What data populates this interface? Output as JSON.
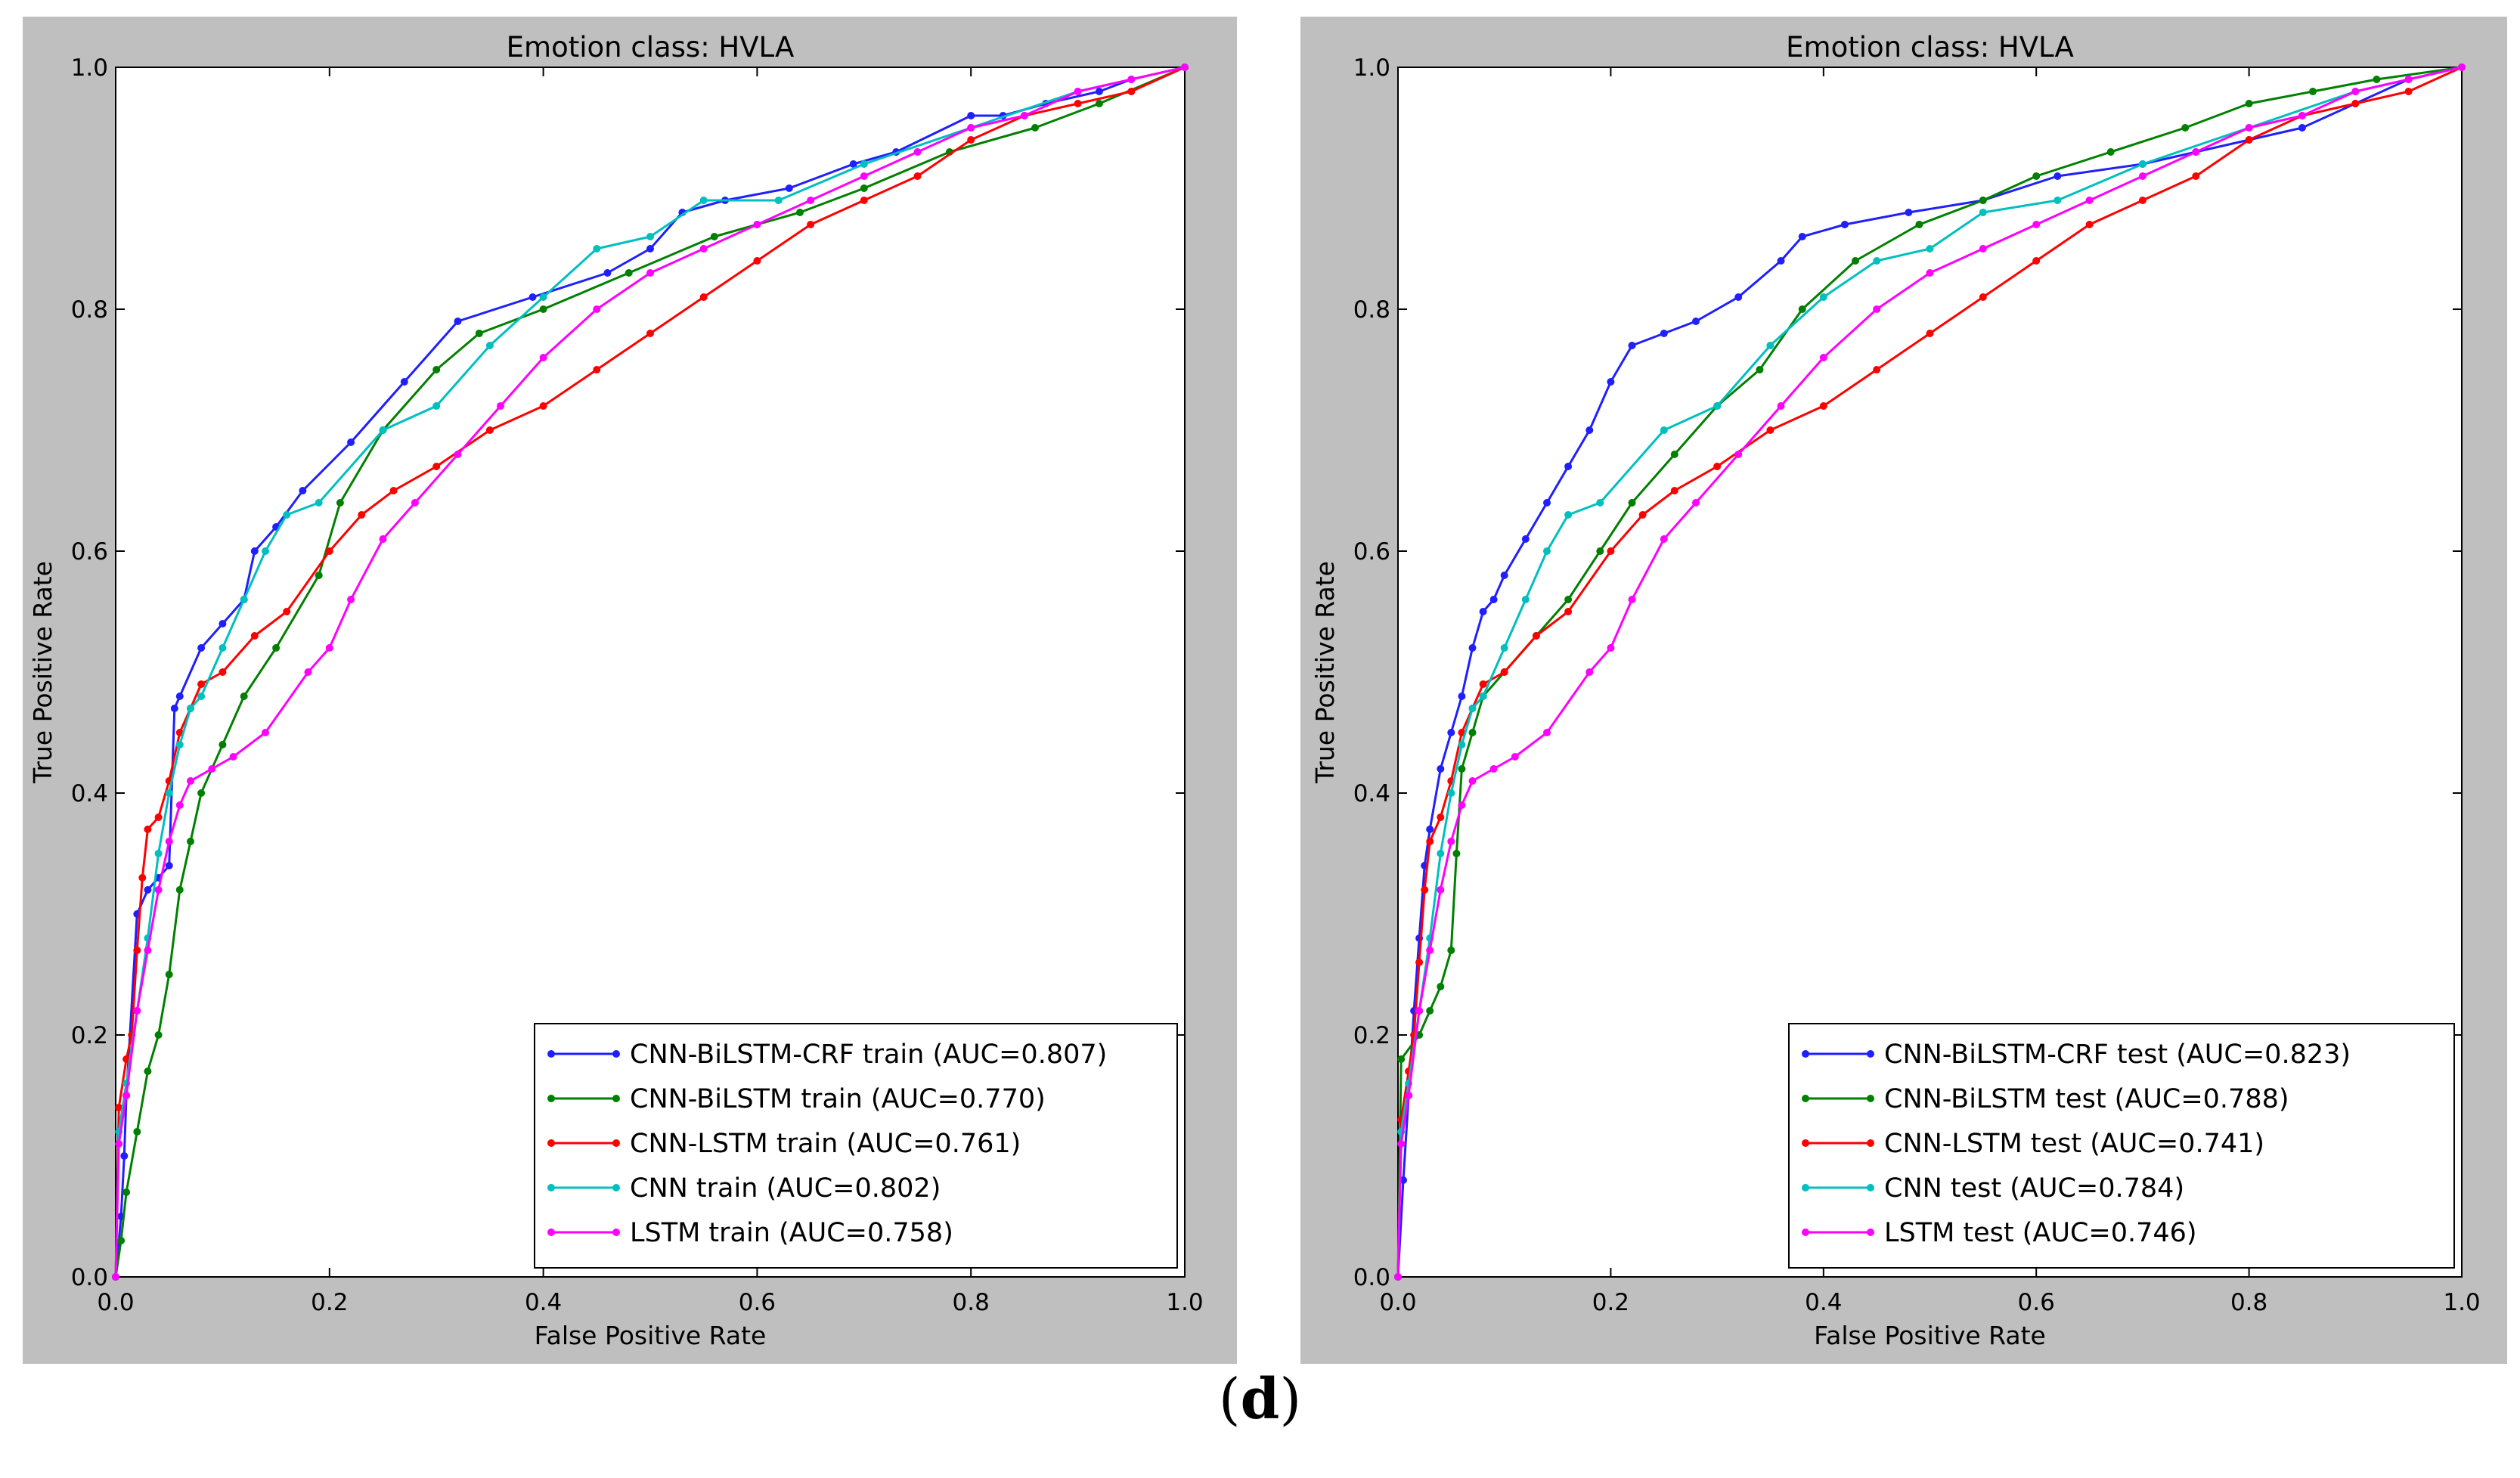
{
  "figure": {
    "caption_open": "(",
    "caption_letter": "d",
    "caption_close": ")"
  },
  "colors": {
    "CNN-BiLSTM-CRF": "#1f1fff",
    "CNN-BiLSTM": "#008000",
    "CNN-LSTM": "#ff0000",
    "CNN": "#00bfbf",
    "LSTM": "#ff00ff",
    "panel_bg": "#bfbfbf",
    "plot_bg": "#ffffff"
  },
  "chart_data": [
    {
      "type": "line",
      "title": "Emotion class: HVLA",
      "xlabel": "False Positive Rate",
      "ylabel": "True Positive Rate",
      "xlim": [
        0,
        1
      ],
      "ylim": [
        0,
        1
      ],
      "xticks": [
        "0.0",
        "0.2",
        "0.4",
        "0.6",
        "0.8",
        "1.0"
      ],
      "yticks": [
        "0.0",
        "0.2",
        "0.4",
        "0.6",
        "0.8",
        "1.0"
      ],
      "legend_position": "lower-right",
      "series": [
        {
          "name": "CNN-BiLSTM-CRF train (AUC=0.807)",
          "key": "CNN-BiLSTM-CRF",
          "x": [
            0,
            0.005,
            0.008,
            0.01,
            0.02,
            0.03,
            0.04,
            0.05,
            0.055,
            0.06,
            0.08,
            0.1,
            0.12,
            0.13,
            0.15,
            0.175,
            0.22,
            0.27,
            0.32,
            0.39,
            0.46,
            0.5,
            0.53,
            0.57,
            0.63,
            0.69,
            0.73,
            0.8,
            0.83,
            0.87,
            0.92,
            0.95,
            1.0
          ],
          "y": [
            0,
            0.05,
            0.1,
            0.15,
            0.3,
            0.32,
            0.33,
            0.34,
            0.47,
            0.48,
            0.52,
            0.54,
            0.56,
            0.6,
            0.62,
            0.65,
            0.69,
            0.74,
            0.79,
            0.81,
            0.83,
            0.85,
            0.88,
            0.89,
            0.9,
            0.92,
            0.93,
            0.96,
            0.96,
            0.97,
            0.98,
            0.99,
            1.0
          ]
        },
        {
          "name": "CNN-BiLSTM train (AUC=0.770)",
          "key": "CNN-BiLSTM",
          "x": [
            0,
            0.005,
            0.01,
            0.02,
            0.03,
            0.04,
            0.05,
            0.06,
            0.07,
            0.08,
            0.1,
            0.12,
            0.15,
            0.19,
            0.21,
            0.25,
            0.3,
            0.34,
            0.4,
            0.48,
            0.56,
            0.64,
            0.7,
            0.78,
            0.86,
            0.92,
            1.0
          ],
          "y": [
            0,
            0.03,
            0.07,
            0.12,
            0.17,
            0.2,
            0.25,
            0.32,
            0.36,
            0.4,
            0.44,
            0.48,
            0.52,
            0.58,
            0.64,
            0.7,
            0.75,
            0.78,
            0.8,
            0.83,
            0.86,
            0.88,
            0.9,
            0.93,
            0.95,
            0.97,
            1.0
          ]
        },
        {
          "name": "CNN-LSTM train (AUC=0.761)",
          "key": "CNN-LSTM",
          "x": [
            0,
            0.003,
            0.01,
            0.015,
            0.02,
            0.025,
            0.03,
            0.04,
            0.05,
            0.06,
            0.07,
            0.08,
            0.1,
            0.13,
            0.16,
            0.2,
            0.23,
            0.26,
            0.3,
            0.35,
            0.4,
            0.45,
            0.5,
            0.55,
            0.6,
            0.65,
            0.7,
            0.75,
            0.8,
            0.85,
            0.9,
            0.95,
            1.0
          ],
          "y": [
            0,
            0.14,
            0.18,
            0.2,
            0.27,
            0.33,
            0.37,
            0.38,
            0.41,
            0.45,
            0.47,
            0.49,
            0.5,
            0.53,
            0.55,
            0.6,
            0.63,
            0.65,
            0.67,
            0.7,
            0.72,
            0.75,
            0.78,
            0.81,
            0.84,
            0.87,
            0.89,
            0.91,
            0.94,
            0.96,
            0.97,
            0.98,
            1.0
          ]
        },
        {
          "name": "CNN train (AUC=0.802)",
          "key": "CNN",
          "x": [
            0,
            0.003,
            0.01,
            0.02,
            0.03,
            0.04,
            0.05,
            0.06,
            0.07,
            0.08,
            0.1,
            0.12,
            0.14,
            0.16,
            0.19,
            0.25,
            0.3,
            0.35,
            0.4,
            0.45,
            0.5,
            0.55,
            0.62,
            0.7,
            0.8,
            0.9,
            1.0
          ],
          "y": [
            0,
            0.12,
            0.16,
            0.22,
            0.28,
            0.35,
            0.4,
            0.44,
            0.47,
            0.48,
            0.52,
            0.56,
            0.6,
            0.63,
            0.64,
            0.7,
            0.72,
            0.77,
            0.81,
            0.85,
            0.86,
            0.89,
            0.89,
            0.92,
            0.95,
            0.98,
            1.0
          ]
        },
        {
          "name": "LSTM train (AUC=0.758)",
          "key": "LSTM",
          "x": [
            0,
            0.003,
            0.01,
            0.02,
            0.03,
            0.04,
            0.05,
            0.06,
            0.07,
            0.09,
            0.11,
            0.14,
            0.18,
            0.2,
            0.22,
            0.25,
            0.28,
            0.32,
            0.36,
            0.4,
            0.45,
            0.5,
            0.55,
            0.6,
            0.65,
            0.7,
            0.75,
            0.8,
            0.85,
            0.9,
            0.95,
            1.0
          ],
          "y": [
            0,
            0.11,
            0.15,
            0.22,
            0.27,
            0.32,
            0.36,
            0.39,
            0.41,
            0.42,
            0.43,
            0.45,
            0.5,
            0.52,
            0.56,
            0.61,
            0.64,
            0.68,
            0.72,
            0.76,
            0.8,
            0.83,
            0.85,
            0.87,
            0.89,
            0.91,
            0.93,
            0.95,
            0.96,
            0.98,
            0.99,
            1.0
          ]
        }
      ]
    },
    {
      "type": "line",
      "title": "Emotion class: HVLA",
      "xlabel": "False Positive Rate",
      "ylabel": "True Positive Rate",
      "xlim": [
        0,
        1
      ],
      "ylim": [
        0,
        1
      ],
      "xticks": [
        "0.0",
        "0.2",
        "0.4",
        "0.6",
        "0.8",
        "1.0"
      ],
      "yticks": [
        "0.0",
        "0.2",
        "0.4",
        "0.6",
        "0.8",
        "1.0"
      ],
      "legend_position": "lower-right",
      "series": [
        {
          "name": "CNN-BiLSTM-CRF test (AUC=0.823)",
          "key": "CNN-BiLSTM-CRF",
          "x": [
            0,
            0.005,
            0.01,
            0.015,
            0.02,
            0.025,
            0.03,
            0.04,
            0.05,
            0.06,
            0.07,
            0.08,
            0.09,
            0.1,
            0.12,
            0.14,
            0.16,
            0.18,
            0.2,
            0.22,
            0.25,
            0.28,
            0.32,
            0.36,
            0.38,
            0.42,
            0.48,
            0.55,
            0.62,
            0.7,
            0.75,
            0.8,
            0.85,
            0.9,
            0.95,
            1.0
          ],
          "y": [
            0,
            0.08,
            0.15,
            0.22,
            0.28,
            0.34,
            0.37,
            0.42,
            0.45,
            0.48,
            0.52,
            0.55,
            0.56,
            0.58,
            0.61,
            0.64,
            0.67,
            0.7,
            0.74,
            0.77,
            0.78,
            0.79,
            0.81,
            0.84,
            0.86,
            0.87,
            0.88,
            0.89,
            0.91,
            0.92,
            0.93,
            0.94,
            0.95,
            0.97,
            0.99,
            1.0
          ]
        },
        {
          "name": "CNN-BiLSTM test (AUC=0.788)",
          "key": "CNN-BiLSTM",
          "x": [
            0,
            0.003,
            0.02,
            0.03,
            0.04,
            0.05,
            0.055,
            0.06,
            0.07,
            0.08,
            0.1,
            0.13,
            0.16,
            0.19,
            0.22,
            0.26,
            0.3,
            0.34,
            0.38,
            0.43,
            0.49,
            0.55,
            0.6,
            0.67,
            0.74,
            0.8,
            0.86,
            0.92,
            1.0
          ],
          "y": [
            0,
            0.18,
            0.2,
            0.22,
            0.24,
            0.27,
            0.35,
            0.42,
            0.45,
            0.48,
            0.5,
            0.53,
            0.56,
            0.6,
            0.64,
            0.68,
            0.72,
            0.75,
            0.8,
            0.84,
            0.87,
            0.89,
            0.91,
            0.93,
            0.95,
            0.97,
            0.98,
            0.99,
            1.0
          ]
        },
        {
          "name": "CNN-LSTM test (AUC=0.741)",
          "key": "CNN-LSTM",
          "x": [
            0,
            0.003,
            0.01,
            0.015,
            0.02,
            0.025,
            0.03,
            0.04,
            0.05,
            0.06,
            0.07,
            0.08,
            0.1,
            0.13,
            0.16,
            0.2,
            0.23,
            0.26,
            0.3,
            0.35,
            0.4,
            0.45,
            0.5,
            0.55,
            0.6,
            0.65,
            0.7,
            0.75,
            0.8,
            0.85,
            0.9,
            0.95,
            1.0
          ],
          "y": [
            0,
            0.13,
            0.17,
            0.2,
            0.26,
            0.32,
            0.36,
            0.38,
            0.41,
            0.45,
            0.47,
            0.49,
            0.5,
            0.53,
            0.55,
            0.6,
            0.63,
            0.65,
            0.67,
            0.7,
            0.72,
            0.75,
            0.78,
            0.81,
            0.84,
            0.87,
            0.89,
            0.91,
            0.94,
            0.96,
            0.97,
            0.98,
            1.0
          ]
        },
        {
          "name": "CNN test (AUC=0.784)",
          "key": "CNN",
          "x": [
            0,
            0.003,
            0.01,
            0.02,
            0.03,
            0.04,
            0.05,
            0.06,
            0.07,
            0.08,
            0.1,
            0.12,
            0.14,
            0.16,
            0.19,
            0.25,
            0.3,
            0.35,
            0.4,
            0.45,
            0.5,
            0.55,
            0.62,
            0.7,
            0.8,
            0.9,
            1.0
          ],
          "y": [
            0,
            0.12,
            0.16,
            0.22,
            0.28,
            0.35,
            0.4,
            0.44,
            0.47,
            0.48,
            0.52,
            0.56,
            0.6,
            0.63,
            0.64,
            0.7,
            0.72,
            0.77,
            0.81,
            0.84,
            0.85,
            0.88,
            0.89,
            0.92,
            0.95,
            0.98,
            1.0
          ]
        },
        {
          "name": "LSTM test (AUC=0.746)",
          "key": "LSTM",
          "x": [
            0,
            0.003,
            0.01,
            0.02,
            0.03,
            0.04,
            0.05,
            0.06,
            0.07,
            0.09,
            0.11,
            0.14,
            0.18,
            0.2,
            0.22,
            0.25,
            0.28,
            0.32,
            0.36,
            0.4,
            0.45,
            0.5,
            0.55,
            0.6,
            0.65,
            0.7,
            0.75,
            0.8,
            0.85,
            0.9,
            0.95,
            1.0
          ],
          "y": [
            0,
            0.11,
            0.15,
            0.22,
            0.27,
            0.32,
            0.36,
            0.39,
            0.41,
            0.42,
            0.43,
            0.45,
            0.5,
            0.52,
            0.56,
            0.61,
            0.64,
            0.68,
            0.72,
            0.76,
            0.8,
            0.83,
            0.85,
            0.87,
            0.89,
            0.91,
            0.93,
            0.95,
            0.96,
            0.98,
            0.99,
            1.0
          ]
        }
      ]
    }
  ]
}
